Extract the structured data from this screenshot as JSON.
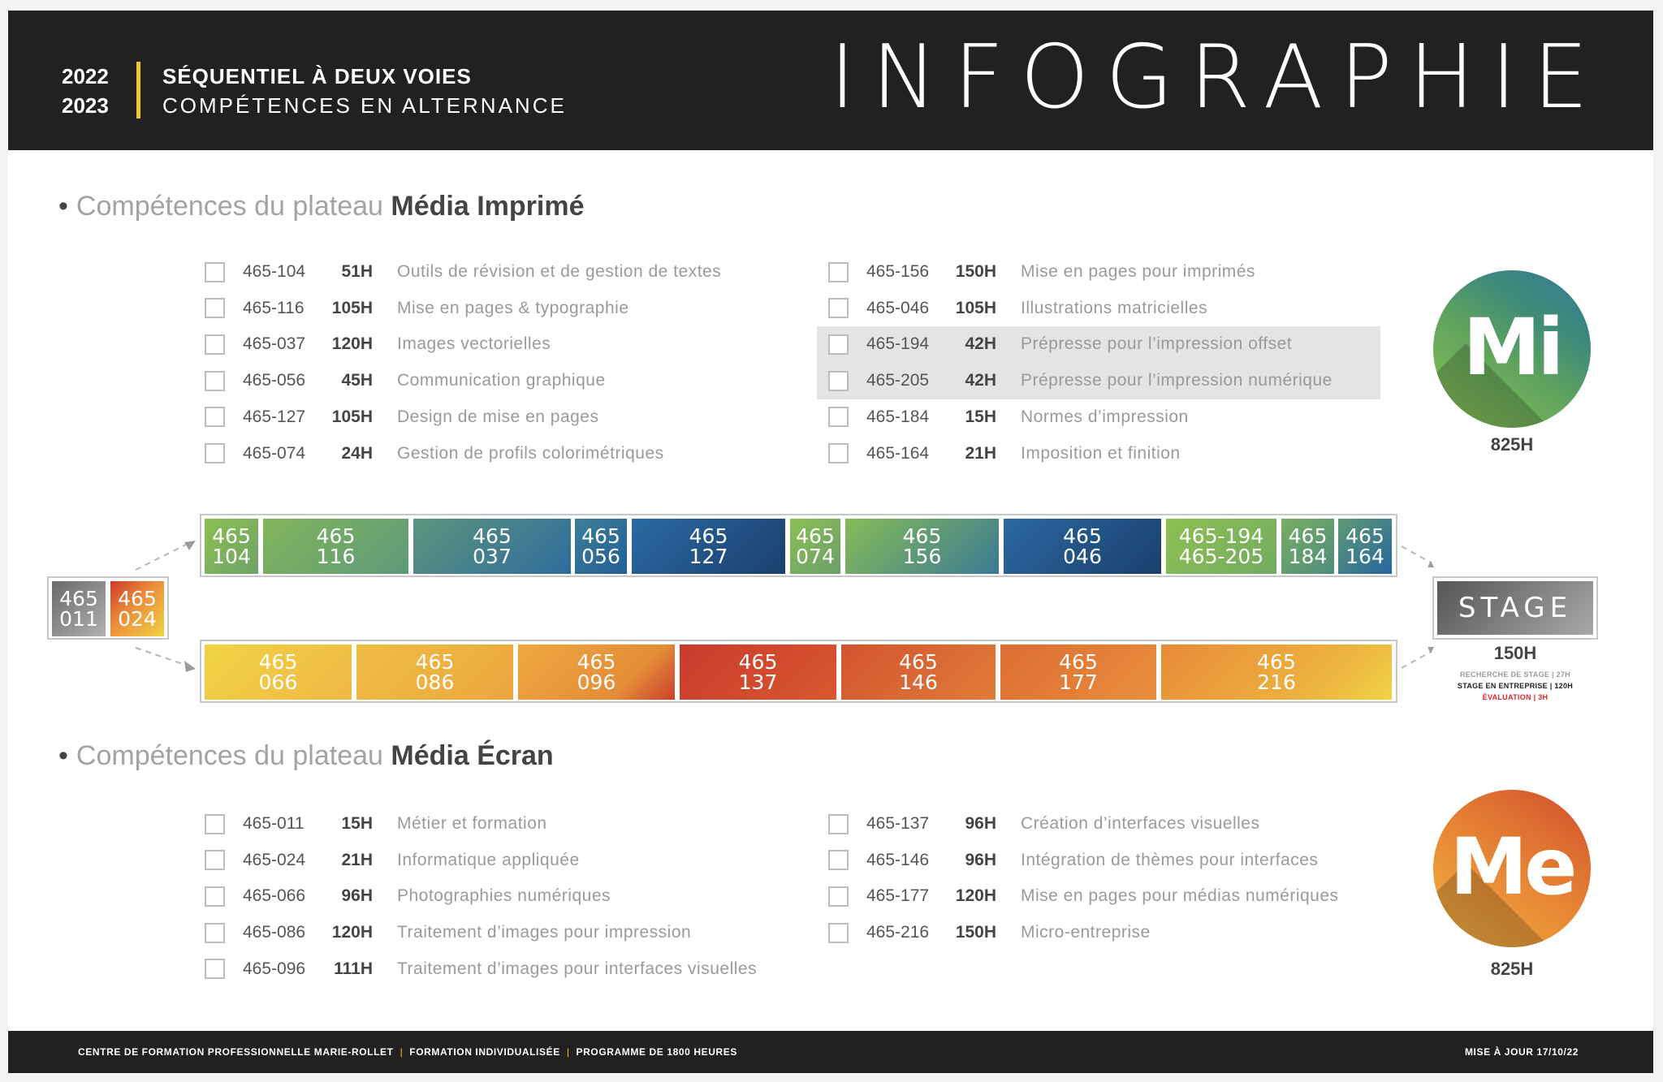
{
  "header": {
    "year_start": "2022",
    "year_end": "2023",
    "subtitle_line1": "SÉQUENTIEL À DEUX VOIES",
    "subtitle_line2": "COMPÉTENCES EN ALTERNANCE",
    "title": "INFOGRAPHIE",
    "accent_color": "#f2c430"
  },
  "section_imprime": {
    "prefix": "Compétences du plateau",
    "name": "Média Imprimé",
    "badge_label": "Mi",
    "badge_hours": "825H",
    "left_courses": [
      {
        "code": "465-104",
        "hours": "51H",
        "title": "Outils de révision et de gestion de textes"
      },
      {
        "code": "465-116",
        "hours": "105H",
        "title": "Mise en pages & typographie"
      },
      {
        "code": "465-037",
        "hours": "120H",
        "title": "Images vectorielles"
      },
      {
        "code": "465-056",
        "hours": "45H",
        "title": "Communication graphique"
      },
      {
        "code": "465-127",
        "hours": "105H",
        "title": "Design de mise en pages"
      },
      {
        "code": "465-074",
        "hours": "24H",
        "title": "Gestion de profils colorimétriques"
      }
    ],
    "right_courses": [
      {
        "code": "465-156",
        "hours": "150H",
        "title": "Mise en pages pour imprimés"
      },
      {
        "code": "465-046",
        "hours": "105H",
        "title": "Illustrations matricielles"
      },
      {
        "code": "465-194",
        "hours": "42H",
        "title": "Prépresse pour l’impression offset"
      },
      {
        "code": "465-205",
        "hours": "42H",
        "title": "Prépresse pour l’impression numérique"
      },
      {
        "code": "465-184",
        "hours": "15H",
        "title": "Normes d’impression"
      },
      {
        "code": "465-164",
        "hours": "21H",
        "title": "Imposition et finition"
      }
    ]
  },
  "section_ecran": {
    "prefix": "Compétences du plateau",
    "name": "Média Écran",
    "badge_label": "Me",
    "badge_hours": "825H",
    "left_courses": [
      {
        "code": "465-011",
        "hours": "15H",
        "title": "Métier et formation"
      },
      {
        "code": "465-024",
        "hours": "21H",
        "title": "Informatique appliquée"
      },
      {
        "code": "465-066",
        "hours": "96H",
        "title": "Photographies numériques"
      },
      {
        "code": "465-086",
        "hours": "120H",
        "title": "Traitement d’images pour impression"
      },
      {
        "code": "465-096",
        "hours": "111H",
        "title": "Traitement d’images pour interfaces visuelles"
      }
    ],
    "right_courses": [
      {
        "code": "465-137",
        "hours": "96H",
        "title": "Création d’interfaces visuelles"
      },
      {
        "code": "465-146",
        "hours": "96H",
        "title": "Intégration de thèmes pour interfaces"
      },
      {
        "code": "465-177",
        "hours": "120H",
        "title": "Mise en pages pour médias numériques"
      },
      {
        "code": "465-216",
        "hours": "150H",
        "title": "Micro-entreprise"
      }
    ]
  },
  "sequence": {
    "start_blocks": [
      {
        "l1": "465",
        "l2": "011"
      },
      {
        "l1": "465",
        "l2": "024"
      }
    ],
    "imprime_blocks": [
      {
        "l1": "465",
        "l2": "104"
      },
      {
        "l1": "465",
        "l2": "116"
      },
      {
        "l1": "465",
        "l2": "037"
      },
      {
        "l1": "465",
        "l2": "056"
      },
      {
        "l1": "465",
        "l2": "127"
      },
      {
        "l1": "465",
        "l2": "074"
      },
      {
        "l1": "465",
        "l2": "156"
      },
      {
        "l1": "465",
        "l2": "046"
      },
      {
        "l1": "465-194",
        "l2": "465-205"
      },
      {
        "l1": "465",
        "l2": "184"
      },
      {
        "l1": "465",
        "l2": "164"
      }
    ],
    "ecran_blocks": [
      {
        "l1": "465",
        "l2": "066"
      },
      {
        "l1": "465",
        "l2": "086"
      },
      {
        "l1": "465",
        "l2": "096"
      },
      {
        "l1": "465",
        "l2": "137"
      },
      {
        "l1": "465",
        "l2": "146"
      },
      {
        "l1": "465",
        "l2": "177"
      },
      {
        "l1": "465",
        "l2": "216"
      }
    ]
  },
  "stage": {
    "label": "STAGE",
    "hours": "150H",
    "details": [
      {
        "text": "RECHERCHE DE STAGE | 27H",
        "color": "#9a9a9a"
      },
      {
        "text": "STAGE EN ENTREPRISE | 120H",
        "color": "#222222"
      },
      {
        "text": "ÉVALUATION | 3H",
        "color": "#d9262c"
      }
    ]
  },
  "footer": {
    "items": [
      "CENTRE DE FORMATION PROFESSIONNELLE MARIE-ROLLET",
      "FORMATION INDIVIDUALISÉE",
      "PROGRAMME DE 1800 HEURES"
    ],
    "separator": "|",
    "updated": "MISE À JOUR 17/10/22"
  }
}
